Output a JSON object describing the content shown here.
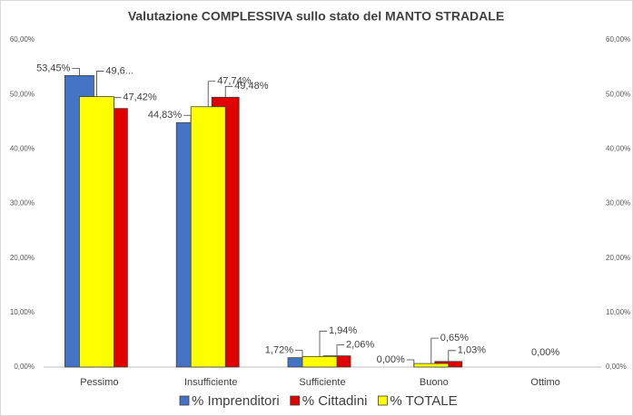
{
  "chart_data": {
    "type": "bar",
    "title": "Valutazione COMPLESSIVA sullo stato del MANTO STRADALE",
    "categories": [
      "Pessimo",
      "Insufficiente",
      "Sufficiente",
      "Buono",
      "Ottimo"
    ],
    "series": [
      {
        "name": "% Imprenditori",
        "color": "#4472c4",
        "values": [
          53.45,
          44.83,
          1.72,
          0,
          null
        ],
        "value_labels": [
          "53,45%",
          "44,83%",
          "1,72%",
          "0,00%",
          null
        ]
      },
      {
        "name": "% Cittadini",
        "color": "#e00000",
        "values": [
          47.42,
          49.48,
          2.06,
          1.03,
          null
        ],
        "value_labels": [
          "47,42%",
          "49,48%",
          "2,06%",
          "1,03%",
          null
        ]
      },
      {
        "name": "% TOTALE",
        "color": "#ffff00",
        "values": [
          49.6,
          47.74,
          1.94,
          0.65,
          0
        ],
        "value_labels": [
          "49,6...",
          "47,74%",
          "1,94%",
          "0,65%",
          "0,00%"
        ]
      }
    ],
    "ylim": [
      0,
      60
    ],
    "yticks": [
      {
        "value": 0,
        "label": "0,00%"
      },
      {
        "value": 10,
        "label": "10,00%"
      },
      {
        "value": 20,
        "label": "20,00%"
      },
      {
        "value": 30,
        "label": "30,00%"
      },
      {
        "value": 40,
        "label": "40,00%"
      },
      {
        "value": 50,
        "label": "50,00%"
      },
      {
        "value": 60,
        "label": "60,00%"
      }
    ],
    "y2lim": [
      0,
      60
    ],
    "y2ticks": [
      {
        "value": 0,
        "label": "0,00%"
      },
      {
        "value": 10,
        "label": "10,00%"
      },
      {
        "value": 20,
        "label": "20,00%"
      },
      {
        "value": 30,
        "label": "30,00%"
      },
      {
        "value": 40,
        "label": "40,00%"
      },
      {
        "value": 50,
        "label": "50,00%"
      },
      {
        "value": 60,
        "label": "60,00%"
      }
    ],
    "grid": false
  }
}
